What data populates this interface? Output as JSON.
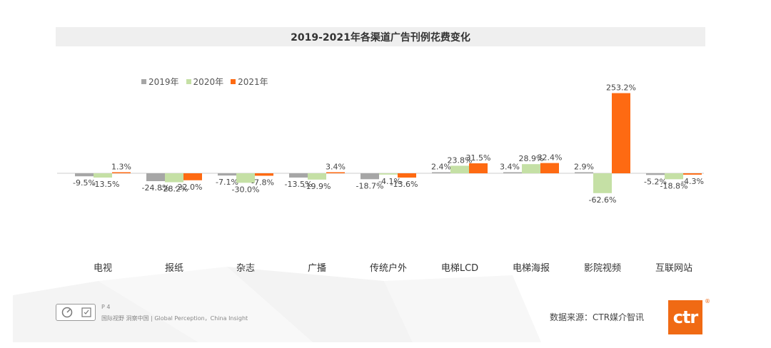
{
  "footer": {
    "page": "P 4",
    "slogan": "国际视野  洞察中国 | Global Perception，China Insight",
    "source": "数据来源：CTR媒介智讯",
    "logo_text": "ctr",
    "registered": "®"
  },
  "colors": {
    "s2019": "#a6a6a6",
    "s2020": "#c5e0a5",
    "s2021": "#fe6a12",
    "axis": "#cccccc",
    "label": "#444444"
  },
  "chart_data": {
    "type": "bar",
    "title": "2019-2021年各渠道广告刊例花费变化",
    "categories": [
      "电视",
      "报纸",
      "杂志",
      "广播",
      "传统户外",
      "电梯LCD",
      "电梯海报",
      "影院视频",
      "互联网站"
    ],
    "series": [
      {
        "name": "2019年",
        "values": [
          -9.5,
          -24.8,
          -7.1,
          -13.5,
          -18.7,
          2.4,
          3.4,
          2.9,
          -5.2
        ],
        "labels": [
          "-9.5%",
          "-24.8%",
          "-7.1%",
          "-13.5%",
          "-18.7%",
          "2.4%",
          "3.4%",
          "2.9%",
          "-5.2%"
        ]
      },
      {
        "name": "2020年",
        "values": [
          -13.5,
          -28.2,
          -30.0,
          -19.9,
          -4.1,
          23.8,
          28.9,
          -62.6,
          -18.8
        ],
        "labels": [
          "-13.5%",
          "-28.2%",
          "-30.0%",
          "-19.9%",
          "-4.1%",
          "23.8%",
          "28.9%",
          "-62.6%",
          "-18.8%"
        ]
      },
      {
        "name": "2021年",
        "values": [
          1.3,
          -22.0,
          -7.8,
          3.4,
          -13.6,
          31.5,
          32.4,
          253.2,
          -4.3
        ],
        "labels": [
          "1.3%",
          "-22.0%",
          "-7.8%",
          "3.4%",
          "-13.6%",
          "31.5%",
          "32.4%",
          "253.2%",
          "-4.3%"
        ]
      }
    ],
    "ylim": [
      -62.6,
      253.2
    ],
    "legend_position": "top-left",
    "grid": false
  }
}
